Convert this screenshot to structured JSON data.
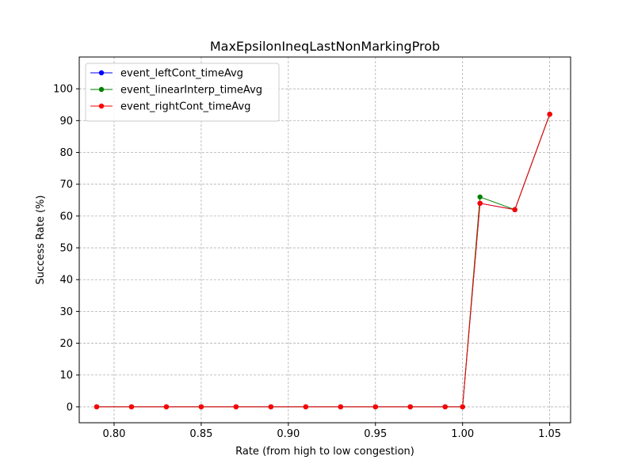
{
  "chart_data": {
    "type": "line",
    "title": "MaxEpsilonIneqLastNonMarkingProb",
    "xlabel": "Rate (from high to low congestion)",
    "ylabel": "Success Rate (%)",
    "xlim": [
      0.78,
      1.062
    ],
    "ylim": [
      -5,
      110
    ],
    "x_ticks": [
      0.8,
      0.85,
      0.9,
      0.95,
      1.0,
      1.05
    ],
    "x_tick_labels": [
      "0.80",
      "0.85",
      "0.90",
      "0.95",
      "1.00",
      "1.05"
    ],
    "y_ticks": [
      0,
      10,
      20,
      30,
      40,
      50,
      60,
      70,
      80,
      90,
      100
    ],
    "y_tick_labels": [
      "0",
      "10",
      "20",
      "30",
      "40",
      "50",
      "60",
      "70",
      "80",
      "90",
      "100"
    ],
    "grid": true,
    "legend_position": "top-left",
    "x": [
      0.79,
      0.81,
      0.83,
      0.85,
      0.87,
      0.89,
      0.91,
      0.93,
      0.95,
      0.97,
      0.99,
      1.0,
      1.01,
      1.03,
      1.05
    ],
    "series": [
      {
        "name": "event_leftCont_timeAvg",
        "color": "#0000ff",
        "values": [
          0,
          0,
          0,
          0,
          0,
          0,
          0,
          0,
          0,
          0,
          0,
          0,
          64,
          62,
          92
        ]
      },
      {
        "name": "event_linearInterp_timeAvg",
        "color": "#008000",
        "values": [
          0,
          0,
          0,
          0,
          0,
          0,
          0,
          0,
          0,
          0,
          0,
          0,
          66,
          62,
          92
        ]
      },
      {
        "name": "event_rightCont_timeAvg",
        "color": "#ff0000",
        "values": [
          0,
          0,
          0,
          0,
          0,
          0,
          0,
          0,
          0,
          0,
          0,
          0,
          64,
          62,
          92
        ]
      }
    ]
  }
}
